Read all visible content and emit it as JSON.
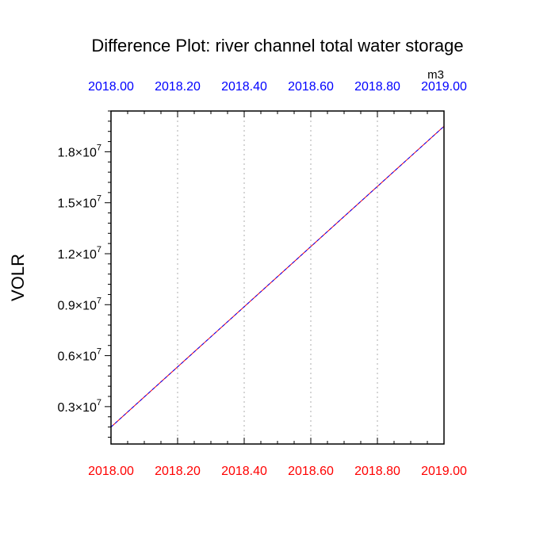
{
  "chart_data": {
    "type": "line",
    "title": "Difference Plot: river channel total water storage",
    "units": "m3",
    "ylabel": "VOLR",
    "xlabel": "",
    "xlim": [
      2018.0,
      2019.0
    ],
    "ylim": [
      0.08,
      2.04
    ],
    "y_exponent": "7",
    "x_ticks": [
      {
        "value": 2018.0,
        "label": "2018.00"
      },
      {
        "value": 2018.2,
        "label": "2018.20"
      },
      {
        "value": 2018.4,
        "label": "2018.40"
      },
      {
        "value": 2018.6,
        "label": "2018.60"
      },
      {
        "value": 2018.8,
        "label": "2018.80"
      },
      {
        "value": 2019.0,
        "label": "2019.00"
      }
    ],
    "y_ticks": [
      {
        "value": 0.3,
        "mantissa": "0.3"
      },
      {
        "value": 0.6,
        "mantissa": "0.6"
      },
      {
        "value": 0.9,
        "mantissa": "0.9"
      },
      {
        "value": 1.2,
        "mantissa": "1.2"
      },
      {
        "value": 1.5,
        "mantissa": "1.5"
      },
      {
        "value": 1.8,
        "mantissa": "1.8"
      }
    ],
    "grid": "x-dotted",
    "colors": {
      "bottom_axis_labels": "#ff0000",
      "top_axis_labels": "#0000ff",
      "series_1": "#ff0000",
      "series_2": "#0000ff",
      "grid": "#bbbbbb"
    },
    "series": [
      {
        "x": [
          2018.0,
          2019.0
        ],
        "y": [
          0.18,
          1.95
        ],
        "color": "#ff0000",
        "dash": "none"
      },
      {
        "x": [
          2018.0,
          2019.0
        ],
        "y": [
          0.18,
          1.95
        ],
        "color": "#0000ff",
        "dash": "dashed"
      }
    ]
  }
}
